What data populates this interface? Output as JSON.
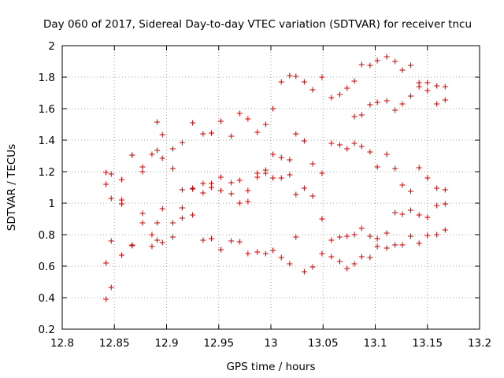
{
  "chart_data": {
    "type": "scatter",
    "title": "Day 060 of 2017, Sidereal Day-to-day VTEC variation (SDTVAR) for receiver tncu",
    "xlabel": "GPS time / hours",
    "ylabel": "SDTVAR / TECUs",
    "xlim": [
      12.8,
      13.2
    ],
    "ylim": [
      0.2,
      2.0
    ],
    "x_ticks": [
      "12.8",
      "12.85",
      "12.9",
      "12.95",
      "13",
      "13.05",
      "13.1",
      "13.15",
      "13.2"
    ],
    "y_ticks": [
      "0.2",
      "0.4",
      "0.6",
      "0.8",
      "1",
      "1.2",
      "1.4",
      "1.6",
      "1.8",
      "2"
    ],
    "grid": true,
    "marker": "+",
    "series": [
      {
        "name": "SDTVAR",
        "color": "#cc0000",
        "points": [
          [
            12.842,
            1.195
          ],
          [
            12.842,
            1.12
          ],
          [
            12.842,
            0.62
          ],
          [
            12.842,
            0.39
          ],
          [
            12.847,
            1.185
          ],
          [
            12.847,
            1.03
          ],
          [
            12.847,
            0.76
          ],
          [
            12.847,
            0.465
          ],
          [
            12.857,
            1.15
          ],
          [
            12.857,
            1.02
          ],
          [
            12.857,
            0.995
          ],
          [
            12.857,
            0.67
          ],
          [
            12.867,
            1.305
          ],
          [
            12.867,
            1.305
          ],
          [
            12.867,
            0.735
          ],
          [
            12.867,
            0.73
          ],
          [
            12.877,
            1.23
          ],
          [
            12.877,
            1.2
          ],
          [
            12.877,
            0.935
          ],
          [
            12.877,
            0.875
          ],
          [
            12.886,
            1.31
          ],
          [
            12.886,
            0.8
          ],
          [
            12.886,
            0.725
          ],
          [
            12.891,
            1.515
          ],
          [
            12.891,
            1.335
          ],
          [
            12.891,
            0.875
          ],
          [
            12.891,
            0.765
          ],
          [
            12.896,
            1.435
          ],
          [
            12.896,
            1.285
          ],
          [
            12.896,
            0.965
          ],
          [
            12.896,
            0.75
          ],
          [
            12.906,
            1.345
          ],
          [
            12.906,
            1.22
          ],
          [
            12.906,
            0.875
          ],
          [
            12.906,
            0.785
          ],
          [
            12.915,
            1.385
          ],
          [
            12.915,
            1.085
          ],
          [
            12.915,
            0.97
          ],
          [
            12.915,
            0.905
          ],
          [
            12.925,
            1.51
          ],
          [
            12.925,
            1.095
          ],
          [
            12.925,
            1.09
          ],
          [
            12.925,
            0.925
          ],
          [
            12.935,
            1.44
          ],
          [
            12.935,
            1.125
          ],
          [
            12.935,
            1.065
          ],
          [
            12.935,
            0.765
          ],
          [
            12.943,
            1.445
          ],
          [
            12.943,
            1.125
          ],
          [
            12.943,
            1.1
          ],
          [
            12.943,
            0.775
          ],
          [
            12.952,
            1.52
          ],
          [
            12.952,
            1.165
          ],
          [
            12.952,
            1.08
          ],
          [
            12.952,
            0.705
          ],
          [
            12.962,
            1.425
          ],
          [
            12.962,
            1.13
          ],
          [
            12.962,
            1.06
          ],
          [
            12.962,
            0.76
          ],
          [
            12.97,
            1.57
          ],
          [
            12.97,
            1.145
          ],
          [
            12.97,
            1.0
          ],
          [
            12.97,
            0.755
          ],
          [
            12.978,
            1.535
          ],
          [
            12.978,
            1.08
          ],
          [
            12.978,
            1.01
          ],
          [
            12.978,
            0.68
          ],
          [
            12.987,
            1.45
          ],
          [
            12.987,
            1.19
          ],
          [
            12.987,
            1.165
          ],
          [
            12.987,
            0.69
          ],
          [
            12.995,
            1.5
          ],
          [
            12.995,
            1.21
          ],
          [
            12.995,
            1.19
          ],
          [
            12.995,
            0.68
          ],
          [
            13.002,
            1.6
          ],
          [
            13.002,
            1.31
          ],
          [
            13.002,
            1.16
          ],
          [
            13.002,
            0.7
          ],
          [
            13.01,
            1.77
          ],
          [
            13.01,
            1.29
          ],
          [
            13.01,
            1.16
          ],
          [
            13.01,
            0.655
          ],
          [
            13.018,
            1.81
          ],
          [
            13.018,
            1.275
          ],
          [
            13.018,
            1.18
          ],
          [
            13.018,
            0.615
          ],
          [
            13.024,
            1.805
          ],
          [
            13.024,
            1.44
          ],
          [
            13.024,
            1.055
          ],
          [
            13.024,
            0.785
          ],
          [
            13.032,
            1.77
          ],
          [
            13.032,
            1.395
          ],
          [
            13.032,
            1.095
          ],
          [
            13.032,
            0.565
          ],
          [
            13.04,
            1.72
          ],
          [
            13.04,
            1.25
          ],
          [
            13.04,
            1.045
          ],
          [
            13.04,
            0.595
          ],
          [
            13.049,
            1.8
          ],
          [
            13.049,
            1.19
          ],
          [
            13.049,
            0.9
          ],
          [
            13.049,
            0.68
          ],
          [
            13.058,
            1.67
          ],
          [
            13.058,
            1.38
          ],
          [
            13.058,
            0.765
          ],
          [
            13.058,
            0.66
          ],
          [
            13.066,
            1.69
          ],
          [
            13.066,
            1.37
          ],
          [
            13.066,
            0.785
          ],
          [
            13.066,
            0.63
          ],
          [
            13.073,
            1.73
          ],
          [
            13.073,
            1.345
          ],
          [
            13.073,
            0.79
          ],
          [
            13.073,
            0.585
          ],
          [
            13.08,
            1.775
          ],
          [
            13.08,
            1.38
          ],
          [
            13.08,
            0.8
          ],
          [
            13.08,
            0.615
          ],
          [
            13.08,
            1.55
          ],
          [
            13.087,
            1.88
          ],
          [
            13.087,
            1.56
          ],
          [
            13.087,
            1.36
          ],
          [
            13.087,
            0.84
          ],
          [
            13.087,
            0.66
          ],
          [
            13.095,
            1.875
          ],
          [
            13.095,
            1.625
          ],
          [
            13.095,
            1.325
          ],
          [
            13.095,
            0.79
          ],
          [
            13.095,
            0.655
          ],
          [
            13.102,
            1.905
          ],
          [
            13.102,
            1.64
          ],
          [
            13.102,
            1.23
          ],
          [
            13.102,
            0.775
          ],
          [
            13.102,
            0.725
          ],
          [
            13.111,
            1.93
          ],
          [
            13.111,
            1.65
          ],
          [
            13.111,
            1.31
          ],
          [
            13.111,
            0.81
          ],
          [
            13.111,
            0.715
          ],
          [
            13.119,
            1.9
          ],
          [
            13.119,
            1.59
          ],
          [
            13.119,
            1.22
          ],
          [
            13.119,
            0.94
          ],
          [
            13.119,
            0.735
          ],
          [
            13.126,
            1.845
          ],
          [
            13.126,
            1.63
          ],
          [
            13.126,
            1.115
          ],
          [
            13.126,
            0.93
          ],
          [
            13.126,
            0.735
          ],
          [
            13.134,
            1.875
          ],
          [
            13.134,
            1.68
          ],
          [
            13.134,
            1.075
          ],
          [
            13.134,
            0.955
          ],
          [
            13.134,
            0.79
          ],
          [
            13.142,
            1.765
          ],
          [
            13.142,
            1.74
          ],
          [
            13.142,
            1.225
          ],
          [
            13.142,
            0.925
          ],
          [
            13.142,
            0.745
          ],
          [
            13.15,
            1.765
          ],
          [
            13.15,
            1.715
          ],
          [
            13.15,
            1.16
          ],
          [
            13.15,
            0.91
          ],
          [
            13.15,
            0.795
          ],
          [
            13.159,
            1.745
          ],
          [
            13.159,
            1.63
          ],
          [
            13.159,
            1.095
          ],
          [
            13.159,
            0.985
          ],
          [
            13.159,
            0.8
          ],
          [
            13.167,
            1.74
          ],
          [
            13.167,
            1.655
          ],
          [
            13.167,
            1.085
          ],
          [
            13.167,
            0.995
          ],
          [
            13.167,
            0.83
          ]
        ]
      }
    ]
  }
}
